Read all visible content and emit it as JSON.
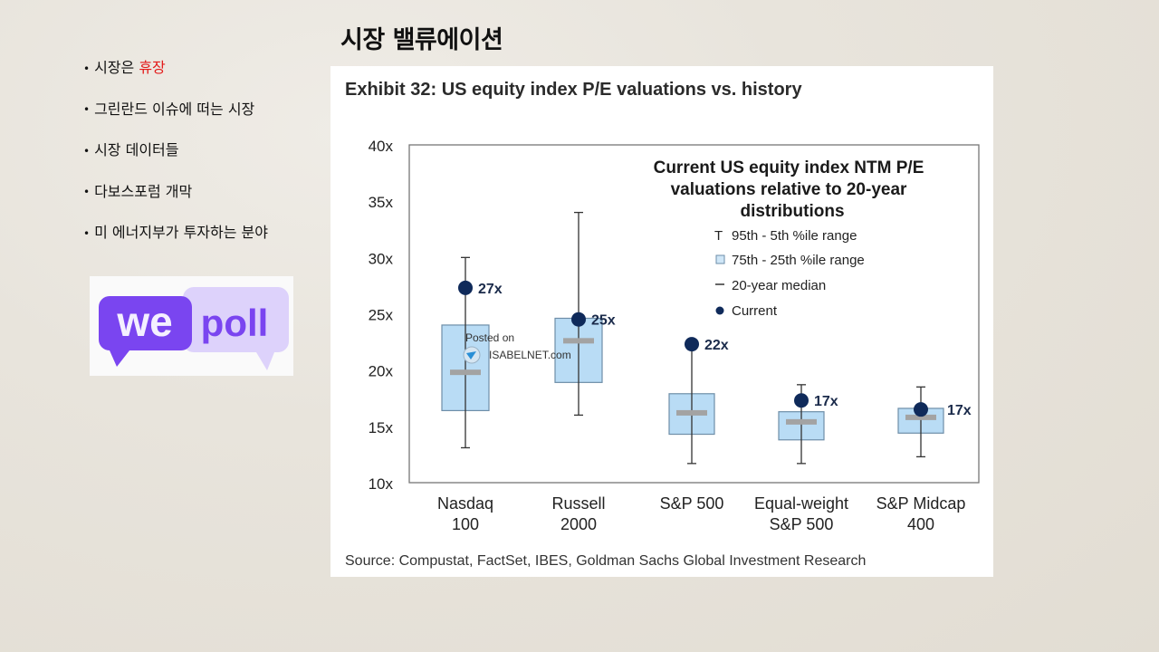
{
  "slide": {
    "title": "시장 밸류에이션",
    "bullets": [
      {
        "text": "시장은 ",
        "highlight": "휴장"
      },
      {
        "text": "그린란드 이슈에 떠는 시장",
        "highlight": ""
      },
      {
        "text": "시장 데이터들",
        "highlight": ""
      },
      {
        "text": "다보스포럼 개막",
        "highlight": ""
      },
      {
        "text": "미 에너지부가 투자하는 분야",
        "highlight": ""
      }
    ],
    "bullet_symbol": "•",
    "highlight_color": "#e31a1a"
  },
  "logo": {
    "word1": "we",
    "word2": "poll",
    "dark_color": "#7a45f0",
    "light_color": "#ddd2fb"
  },
  "watermark": {
    "line1": "Posted on",
    "line2": "ISABELNET.com"
  },
  "chart_data": {
    "type": "box",
    "title": "Exhibit 32: US equity index P/E valuations vs. history",
    "inner_title": [
      "Current US equity index NTM P/E",
      "valuations relative to 20-year",
      "distributions"
    ],
    "legend": [
      {
        "symbol": "T",
        "label": "95th - 5th %ile range"
      },
      {
        "symbol": "box",
        "label": "75th - 25th %ile range"
      },
      {
        "symbol": "–",
        "label": "20-year median"
      },
      {
        "symbol": "dot",
        "label": "Current"
      }
    ],
    "legend_position": "top-right",
    "ylim": [
      10,
      40
    ],
    "yticks": [
      10,
      15,
      20,
      25,
      30,
      35,
      40
    ],
    "ytick_labels": [
      "10x",
      "15x",
      "20x",
      "25x",
      "30x",
      "35x",
      "40x"
    ],
    "categories": [
      [
        "Nasdaq",
        "100"
      ],
      [
        "Russell",
        "2000"
      ],
      [
        "S&P 500",
        ""
      ],
      [
        "Equal-weight",
        "S&P 500"
      ],
      [
        "S&P Midcap",
        "400"
      ]
    ],
    "series": [
      {
        "name": "95th %ile",
        "values": [
          30.0,
          34.0,
          22.3,
          18.7,
          18.5
        ]
      },
      {
        "name": "75th %ile",
        "values": [
          24.0,
          24.6,
          17.9,
          16.3,
          16.6
        ]
      },
      {
        "name": "20-year median",
        "values": [
          19.8,
          22.6,
          16.2,
          15.4,
          15.8
        ]
      },
      {
        "name": "25th %ile",
        "values": [
          16.4,
          18.9,
          14.3,
          13.8,
          14.4
        ]
      },
      {
        "name": "5th %ile",
        "values": [
          13.1,
          16.0,
          11.7,
          11.7,
          12.3
        ]
      },
      {
        "name": "Current",
        "values": [
          27.3,
          24.5,
          22.3,
          17.3,
          16.5
        ]
      }
    ],
    "current_labels": [
      "27x",
      "25x",
      "22x",
      "17x",
      "17x"
    ],
    "colors": {
      "box_fill": "#b9dcf5",
      "box_stroke": "#6e8ea8",
      "median": "#a3a3a3",
      "dot": "#0f2a5a",
      "whisker": "#333333",
      "frame": "#777777"
    },
    "source": "Source: Compustat, FactSet, IBES, Goldman Sachs Global Investment Research"
  }
}
